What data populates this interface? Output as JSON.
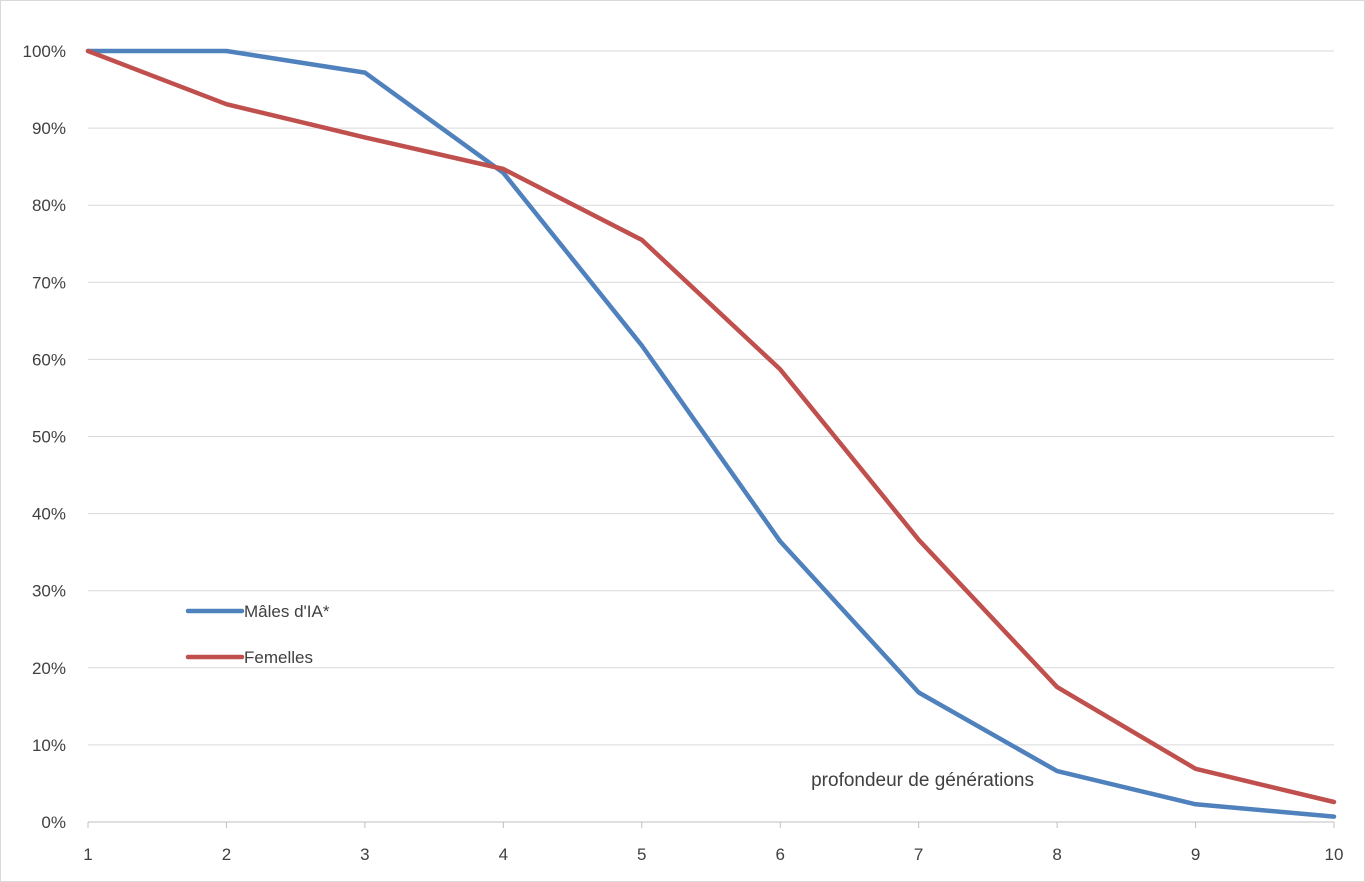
{
  "chart_data": {
    "type": "line",
    "title": "",
    "xlabel": "",
    "ylabel": "",
    "x": [
      1,
      2,
      3,
      4,
      5,
      6,
      7,
      8,
      9,
      10
    ],
    "x_tick_labels": [
      "1",
      "2",
      "3",
      "4",
      "5",
      "6",
      "7",
      "8",
      "9",
      "10"
    ],
    "y_ticks": [
      0,
      10,
      20,
      30,
      40,
      50,
      60,
      70,
      80,
      90,
      100
    ],
    "y_tick_labels": [
      "0%",
      "10%",
      "20%",
      "30%",
      "40%",
      "50%",
      "60%",
      "70%",
      "80%",
      "90%",
      "100%"
    ],
    "ylim": [
      0,
      100
    ],
    "xlim": [
      1,
      10
    ],
    "grid": true,
    "legend_position": "left",
    "annotation": "profondeur de générations",
    "series": [
      {
        "name": "Mâles d'IA*",
        "color": "#4f81bd",
        "values": [
          100,
          100,
          97.2,
          84.2,
          61.8,
          36.4,
          16.8,
          6.6,
          2.3,
          0.7
        ]
      },
      {
        "name": "Femelles",
        "color": "#c0504d",
        "values": [
          100,
          93.1,
          88.8,
          84.7,
          75.5,
          58.7,
          36.6,
          17.5,
          6.9,
          2.6
        ]
      }
    ]
  }
}
